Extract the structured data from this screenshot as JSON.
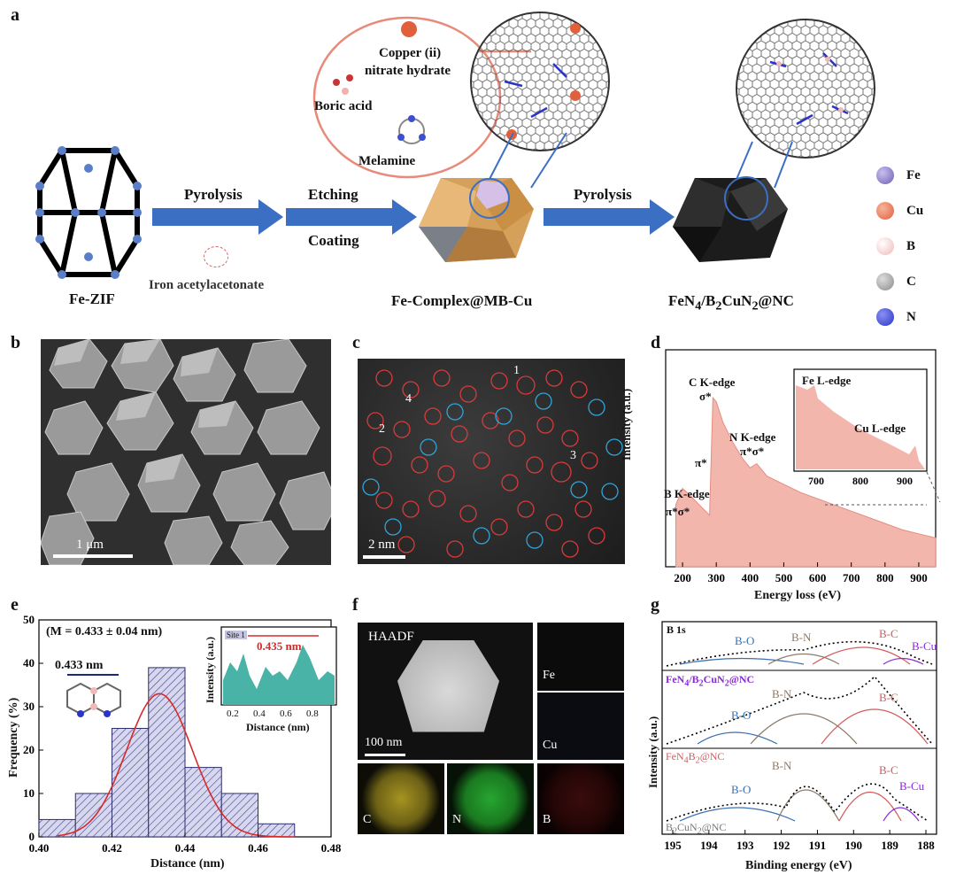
{
  "panels": {
    "a": "a",
    "b": "b",
    "c": "c",
    "d": "d",
    "e": "e",
    "f": "f",
    "g": "g"
  },
  "panel_a": {
    "reagent_copper": "Copper (ii)",
    "reagent_copper2": "nitrate hydrate",
    "reagent_boric": "Boric acid",
    "reagent_melamine": "Melamine",
    "step1": "Pyrolysis",
    "step1_sub": "Iron acetylacetonate",
    "step2a": "Etching",
    "step2b": "Coating",
    "step3": "Pyrolysis",
    "label_fezif": "Fe-ZIF",
    "label_complex": "Fe-Complex@MB-Cu",
    "label_final_main": "FeN",
    "label_final_sub1": "4",
    "label_final_mid": "/B",
    "label_final_sub2": "2",
    "label_final_mid2": "CuN",
    "label_final_sub3": "2",
    "label_final_end": "@NC",
    "legend": [
      {
        "name": "Fe",
        "color": "#6f5fb0"
      },
      {
        "name": "Cu",
        "color": "#e0603c"
      },
      {
        "name": "B",
        "color": "#f0b8b8"
      },
      {
        "name": "C",
        "color": "#8a8a8a"
      },
      {
        "name": "N",
        "color": "#2a35c8"
      }
    ]
  },
  "panel_b": {
    "scale": "1 μm"
  },
  "panel_c": {
    "scale": "2 nm",
    "sites": [
      "1",
      "2",
      "3",
      "4"
    ]
  },
  "panel_d": {
    "xlabel": "Energy loss (eV)",
    "ylabel": "Intensity (a.u.)",
    "xticks": [
      "200",
      "300",
      "400",
      "500",
      "600",
      "700",
      "800",
      "900"
    ],
    "b_edge": "B  K-edge",
    "b_pi": "π*σ*",
    "c_edge": "C  K-edge",
    "c_sigma": "σ*",
    "c_pi": "π*",
    "n_edge": "N  K-edge",
    "n_pi": "π*σ*",
    "inset_fe": "Fe  L-edge",
    "inset_cu": "Cu  L-edge",
    "inset_xticks": [
      "700",
      "800",
      "900"
    ]
  },
  "panel_e": {
    "title": "(M = 0.433 ± 0.04 nm)",
    "measure": "0.433 nm",
    "xlabel": "Distance (nm)",
    "ylabel": "Frequency (%)",
    "xticks": [
      "0.40",
      "0.42",
      "0.44",
      "0.46",
      "0.48"
    ],
    "yticks": [
      "0",
      "10",
      "20",
      "30",
      "40",
      "50"
    ],
    "inset_site": "Site 1",
    "inset_value": "0.435 nm",
    "inset_xlabel": "Distance (nm)",
    "inset_ylabel": "Intensity (a.u.)",
    "inset_xticks": [
      "0.2",
      "0.4",
      "0.6",
      "0.8"
    ]
  },
  "panel_f": {
    "haadf": "HAADF",
    "scale": "100 nm",
    "maps": [
      "Fe",
      "Cu",
      "C",
      "N",
      "B"
    ]
  },
  "panel_g": {
    "title": "B 1s",
    "xlabel": "Binding energy (eV)",
    "ylabel": "Intensity (a.u.)",
    "xticks": [
      "195",
      "194",
      "193",
      "192",
      "191",
      "190",
      "189",
      "188"
    ],
    "peak_bo": "B-O",
    "peak_bn": "B-N",
    "peak_bc": "B-C",
    "peak_bcu": "B-Cu",
    "sample1_a": "FeN",
    "sample1_b": "4",
    "sample1_c": "/B",
    "sample1_d": "2",
    "sample1_e": "CuN",
    "sample1_f": "2",
    "sample1_g": "@NC",
    "sample2_a": "FeN",
    "sample2_b": "4",
    "sample2_c": "B",
    "sample2_d": "2",
    "sample2_e": "@NC",
    "sample3_a": "B",
    "sample3_b": "2",
    "sample3_c": "CuN",
    "sample3_d": "2",
    "sample3_e": "@NC"
  },
  "chart_data": [
    {
      "type": "bar",
      "title": "(M = 0.433 ± 0.04 nm)",
      "xlabel": "Distance (nm)",
      "ylabel": "Frequency (%)",
      "bins": [
        0.405,
        0.415,
        0.425,
        0.435,
        0.445,
        0.455,
        0.465
      ],
      "values": [
        4,
        10,
        25,
        39,
        16,
        10,
        3
      ],
      "xlim": [
        0.4,
        0.48
      ],
      "ylim": [
        0,
        50
      ]
    },
    {
      "type": "area",
      "xlabel": "Energy loss (eV)",
      "ylabel": "Intensity (a.u.)",
      "x": [
        180,
        200,
        220,
        250,
        280,
        290,
        300,
        320,
        350,
        380,
        400,
        420,
        450,
        500,
        550,
        600,
        650,
        700,
        750,
        800,
        850,
        900,
        950
      ],
      "y": [
        0.3,
        0.38,
        0.35,
        0.3,
        0.25,
        0.82,
        0.8,
        0.7,
        0.6,
        0.52,
        0.48,
        0.5,
        0.44,
        0.4,
        0.36,
        0.33,
        0.3,
        0.27,
        0.24,
        0.21,
        0.18,
        0.16,
        0.14
      ],
      "xlim": [
        150,
        950
      ]
    }
  ]
}
